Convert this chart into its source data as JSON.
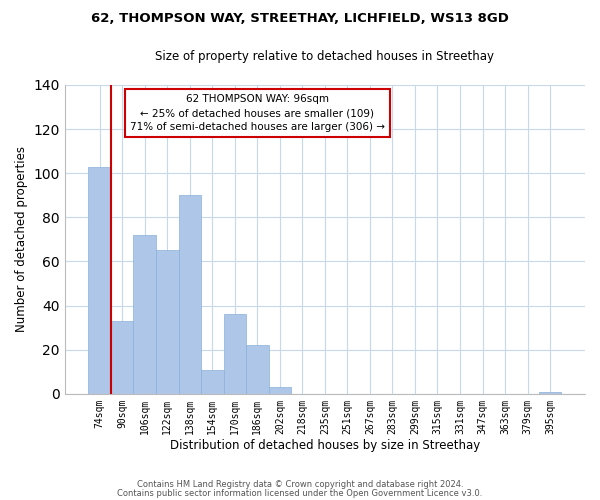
{
  "title": "62, THOMPSON WAY, STREETHAY, LICHFIELD, WS13 8GD",
  "subtitle": "Size of property relative to detached houses in Streethay",
  "xlabel": "Distribution of detached houses by size in Streethay",
  "ylabel": "Number of detached properties",
  "bar_labels": [
    "74sqm",
    "90sqm",
    "106sqm",
    "122sqm",
    "138sqm",
    "154sqm",
    "170sqm",
    "186sqm",
    "202sqm",
    "218sqm",
    "235sqm",
    "251sqm",
    "267sqm",
    "283sqm",
    "299sqm",
    "315sqm",
    "331sqm",
    "347sqm",
    "363sqm",
    "379sqm",
    "395sqm"
  ],
  "bar_heights": [
    103,
    33,
    72,
    65,
    90,
    11,
    36,
    22,
    3,
    0,
    0,
    0,
    0,
    0,
    0,
    0,
    0,
    0,
    0,
    0,
    1
  ],
  "bar_color": "#aec6e8",
  "bar_edge_color": "#8ab0d8",
  "vline_color": "#cc0000",
  "vline_x_index": 0.5,
  "ylim": [
    0,
    140
  ],
  "annotation_title": "62 THOMPSON WAY: 96sqm",
  "annotation_line1": "← 25% of detached houses are smaller (109)",
  "annotation_line2": "71% of semi-detached houses are larger (306) →",
  "annotation_box_color": "#ffffff",
  "annotation_box_edge": "#cc0000",
  "footer1": "Contains HM Land Registry data © Crown copyright and database right 2024.",
  "footer2": "Contains public sector information licensed under the Open Government Licence v3.0."
}
